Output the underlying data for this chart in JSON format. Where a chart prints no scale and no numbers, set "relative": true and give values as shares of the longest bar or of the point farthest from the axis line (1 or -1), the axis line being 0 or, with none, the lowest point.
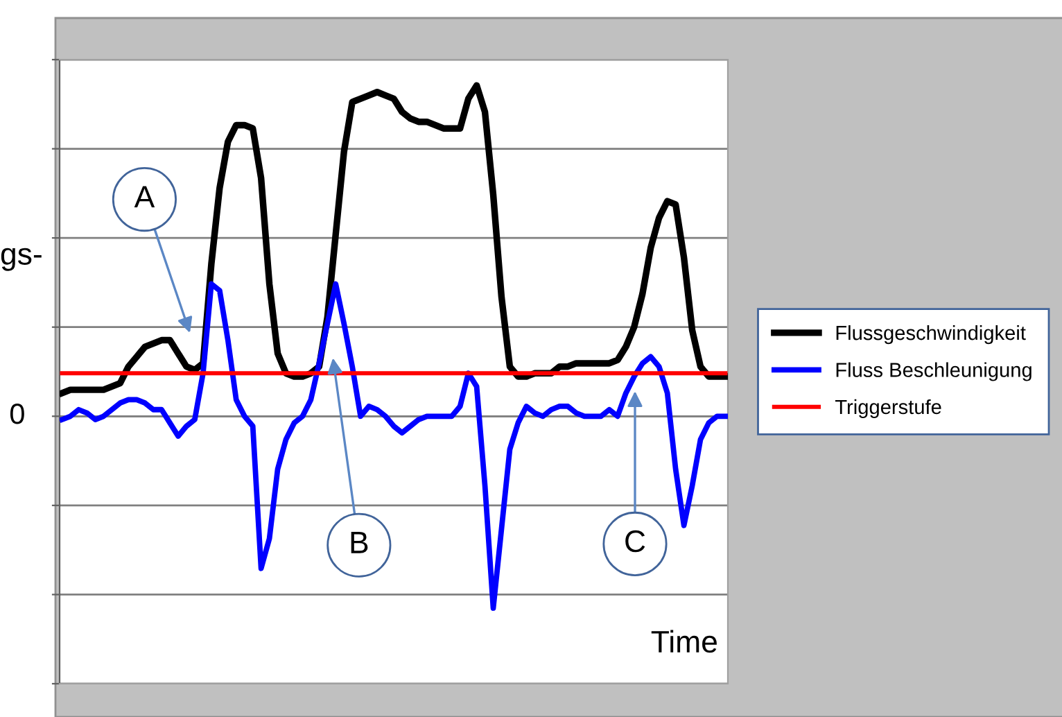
{
  "chart_data": {
    "type": "line",
    "relative": true,
    "ylabel": "gs-",
    "xlabel": "Time",
    "categories": [
      null,
      null,
      null,
      null,
      null,
      null,
      null,
      null,
      null,
      null,
      null,
      null,
      null,
      null,
      null,
      null,
      null,
      null,
      null,
      null,
      null,
      null,
      null,
      null,
      null,
      null,
      null,
      null,
      null,
      null,
      null,
      null,
      null,
      null,
      null,
      null,
      null,
      null,
      null,
      null,
      null,
      null,
      null,
      null,
      null,
      null,
      null,
      null,
      null,
      null,
      null,
      null,
      null,
      null,
      null,
      null,
      null,
      null,
      null,
      null,
      null,
      null,
      null,
      null,
      null,
      null,
      null,
      null,
      null,
      null,
      null,
      null,
      null,
      null,
      null,
      null,
      null,
      null,
      null,
      null,
      null
    ],
    "series": [
      {
        "name": "Flussgeschwindigkeit",
        "color": "#000000",
        "values": [
          0.07,
          0.08,
          0.08,
          0.08,
          0.08,
          0.08,
          0.09,
          0.1,
          0.15,
          0.18,
          0.21,
          0.22,
          0.23,
          0.23,
          0.19,
          0.15,
          0.14,
          0.16,
          0.46,
          0.69,
          0.83,
          0.88,
          0.88,
          0.87,
          0.72,
          0.4,
          0.19,
          0.13,
          0.12,
          0.12,
          0.13,
          0.15,
          0.3,
          0.55,
          0.8,
          0.95,
          0.96,
          0.97,
          0.98,
          0.97,
          0.96,
          0.92,
          0.9,
          0.89,
          0.89,
          0.88,
          0.87,
          0.87,
          0.87,
          0.96,
          1,
          0.92,
          0.67,
          0.36,
          0.15,
          0.12,
          0.12,
          0.13,
          0.13,
          0.13,
          0.15,
          0.15,
          0.16,
          0.16,
          0.16,
          0.16,
          0.16,
          0.17,
          0.21,
          0.27,
          0.37,
          0.51,
          0.6,
          0.65,
          0.64,
          0.48,
          0.26,
          0.15,
          0.12,
          0.12,
          0.12
        ]
      },
      {
        "name": "Fluss Beschleunigung",
        "color": "#0000ff",
        "values": [
          -0.01,
          0,
          0.02,
          0.01,
          -0.01,
          0,
          0.02,
          0.04,
          0.05,
          0.05,
          0.04,
          0.02,
          0.02,
          -0.02,
          -0.06,
          -0.03,
          -0.01,
          0.13,
          0.4,
          0.38,
          0.23,
          0.05,
          0,
          -0.03,
          -0.46,
          -0.37,
          -0.16,
          -0.07,
          -0.02,
          0,
          0.05,
          0.16,
          0.28,
          0.4,
          0.28,
          0.15,
          0,
          0.03,
          0.02,
          0,
          -0.03,
          -0.05,
          -0.03,
          -0.01,
          0,
          0,
          0,
          0,
          0.03,
          0.13,
          0.09,
          -0.21,
          -0.58,
          -0.34,
          -0.1,
          -0.02,
          0.03,
          0.01,
          0,
          0.02,
          0.03,
          0.03,
          0.01,
          0,
          0,
          0,
          0.02,
          0,
          0.07,
          0.12,
          0.16,
          0.18,
          0.15,
          0.07,
          -0.16,
          -0.33,
          -0.21,
          -0.07,
          -0.02,
          0,
          0
        ]
      },
      {
        "name": "Triggerstufe",
        "color": "#ff0000",
        "values": [
          0.13,
          0.13,
          0.13,
          0.13,
          0.13,
          0.13,
          0.13,
          0.13,
          0.13,
          0.13,
          0.13,
          0.13,
          0.13,
          0.13,
          0.13,
          0.13,
          0.13,
          0.13,
          0.13,
          0.13,
          0.13,
          0.13,
          0.13,
          0.13,
          0.13,
          0.13,
          0.13,
          0.13,
          0.13,
          0.13,
          0.13,
          0.13,
          0.13,
          0.13,
          0.13,
          0.13,
          0.13,
          0.13,
          0.13,
          0.13,
          0.13,
          0.13,
          0.13,
          0.13,
          0.13,
          0.13,
          0.13,
          0.13,
          0.13,
          0.13,
          0.13,
          0.13,
          0.13,
          0.13,
          0.13,
          0.13,
          0.13,
          0.13,
          0.13,
          0.13,
          0.13,
          0.13,
          0.13,
          0.13,
          0.13,
          0.13,
          0.13,
          0.13,
          0.13,
          0.13,
          0.13,
          0.13,
          0.13,
          0.13,
          0.13,
          0.13,
          0.13,
          0.13,
          0.13,
          0.13,
          0.13
        ]
      }
    ],
    "annotations": [
      "A",
      "B",
      "C"
    ],
    "ref_lines": [
      {
        "axis": "y",
        "value": 0,
        "label": "0",
        "color": "#808080"
      }
    ],
    "grid": "y",
    "legend": "right",
    "marker": "none",
    "line_style": "solid"
  }
}
